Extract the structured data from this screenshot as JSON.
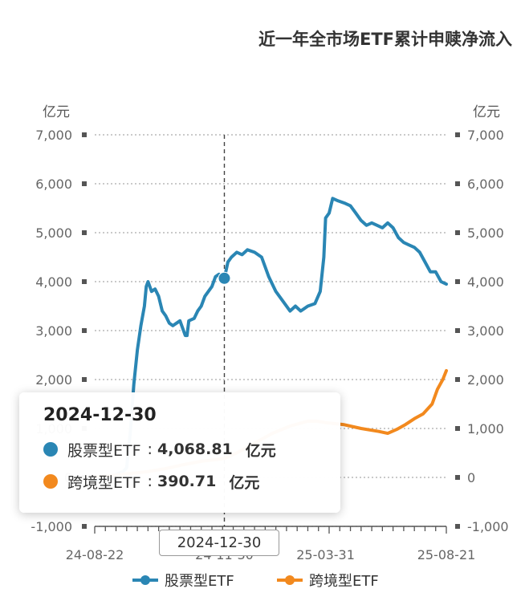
{
  "chart_data": {
    "type": "line",
    "title": "近一年全市场ETF累计申赎净流入",
    "y_unit_left": "亿元",
    "y_unit_right": "亿元",
    "ylim": [
      -1000,
      7000
    ],
    "y_ticks": [
      "-1,000",
      "0",
      "1,000",
      "2,000",
      "3,000",
      "4,000",
      "5,000",
      "6,000",
      "7,000"
    ],
    "y_tick_values": [
      -1000,
      0,
      1000,
      2000,
      3000,
      4000,
      5000,
      6000,
      7000
    ],
    "x_tick_labels": [
      "24-08-22",
      "24-11-30",
      "25-03-31",
      "25-08-21"
    ],
    "grid": true,
    "legend_position": "bottom",
    "series": [
      {
        "name": "股票型ETF",
        "color": "#2a86b4",
        "points": [
          [
            0,
            -50
          ],
          [
            4,
            -40
          ],
          [
            8,
            0
          ],
          [
            12,
            60
          ],
          [
            16,
            120
          ],
          [
            18,
            200
          ],
          [
            20,
            900
          ],
          [
            22,
            1900
          ],
          [
            24,
            2600
          ],
          [
            26,
            3100
          ],
          [
            28,
            3500
          ],
          [
            29,
            3900
          ],
          [
            30,
            4000
          ],
          [
            32,
            3800
          ],
          [
            34,
            3850
          ],
          [
            36,
            3700
          ],
          [
            38,
            3400
          ],
          [
            40,
            3300
          ],
          [
            42,
            3150
          ],
          [
            44,
            3100
          ],
          [
            46,
            3150
          ],
          [
            48,
            3200
          ],
          [
            50,
            3000
          ],
          [
            51,
            2900
          ],
          [
            52,
            2900
          ],
          [
            53,
            3200
          ],
          [
            56,
            3250
          ],
          [
            58,
            3400
          ],
          [
            60,
            3500
          ],
          [
            62,
            3700
          ],
          [
            64,
            3800
          ],
          [
            66,
            3900
          ],
          [
            68,
            4100
          ],
          [
            70,
            4150
          ],
          [
            72,
            4000
          ],
          [
            73,
            4068.81
          ],
          [
            75,
            4400
          ],
          [
            77,
            4500
          ],
          [
            80,
            4600
          ],
          [
            83,
            4550
          ],
          [
            86,
            4650
          ],
          [
            90,
            4600
          ],
          [
            94,
            4500
          ],
          [
            98,
            4100
          ],
          [
            102,
            3800
          ],
          [
            106,
            3600
          ],
          [
            110,
            3400
          ],
          [
            113,
            3500
          ],
          [
            116,
            3400
          ],
          [
            120,
            3500
          ],
          [
            124,
            3550
          ],
          [
            127,
            3800
          ],
          [
            129,
            4500
          ],
          [
            130,
            5300
          ],
          [
            132,
            5400
          ],
          [
            134,
            5700
          ],
          [
            137,
            5650
          ],
          [
            141,
            5600
          ],
          [
            144,
            5550
          ],
          [
            147,
            5400
          ],
          [
            150,
            5250
          ],
          [
            153,
            5150
          ],
          [
            156,
            5200
          ],
          [
            159,
            5150
          ],
          [
            162,
            5100
          ],
          [
            165,
            5200
          ],
          [
            168,
            5100
          ],
          [
            171,
            4900
          ],
          [
            174,
            4800
          ],
          [
            177,
            4750
          ],
          [
            180,
            4700
          ],
          [
            183,
            4600
          ],
          [
            186,
            4400
          ],
          [
            189,
            4200
          ],
          [
            192,
            4200
          ],
          [
            195,
            4000
          ],
          [
            198,
            3950
          ]
        ]
      },
      {
        "name": "跨境型ETF",
        "color": "#f2891e",
        "points": [
          [
            0,
            10
          ],
          [
            10,
            40
          ],
          [
            20,
            80
          ],
          [
            30,
            120
          ],
          [
            40,
            180
          ],
          [
            50,
            260
          ],
          [
            60,
            330
          ],
          [
            70,
            370
          ],
          [
            73,
            390.71
          ],
          [
            80,
            500
          ],
          [
            90,
            700
          ],
          [
            100,
            900
          ],
          [
            110,
            1050
          ],
          [
            115,
            1100
          ],
          [
            120,
            1150
          ],
          [
            125,
            1150
          ],
          [
            130,
            1120
          ],
          [
            140,
            1080
          ],
          [
            150,
            1000
          ],
          [
            160,
            940
          ],
          [
            165,
            900
          ],
          [
            170,
            980
          ],
          [
            175,
            1080
          ],
          [
            180,
            1200
          ],
          [
            185,
            1300
          ],
          [
            190,
            1500
          ],
          [
            193,
            1800
          ],
          [
            196,
            2000
          ],
          [
            198,
            2180
          ]
        ]
      }
    ],
    "highlight": {
      "index": 73,
      "date": "2024-12-30",
      "values": [
        {
          "name": "股票型ETF",
          "value": "4,068.81",
          "unit": "亿元"
        },
        {
          "name": "跨境型ETF",
          "value": "390.71",
          "unit": "亿元"
        }
      ]
    }
  }
}
